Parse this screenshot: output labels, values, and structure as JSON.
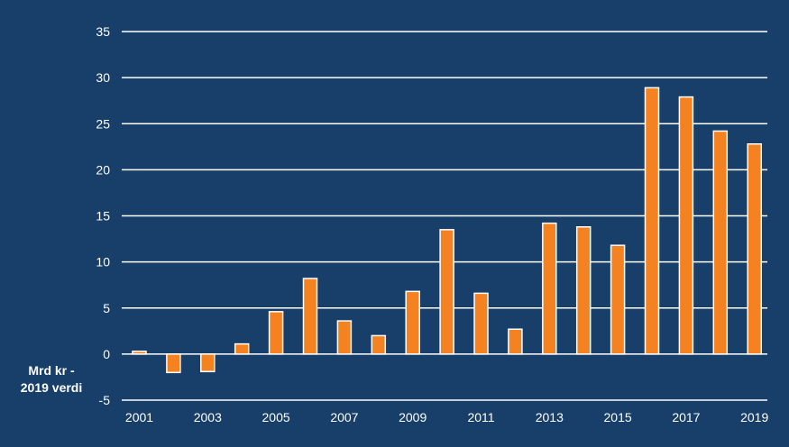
{
  "chart_data": {
    "type": "bar",
    "title": "",
    "xlabel": "",
    "ylabel": "Mrd kr -\n2019 verdi",
    "ylim": [
      -5,
      35
    ],
    "yticks": [
      35,
      30,
      25,
      20,
      15,
      10,
      5,
      0,
      -5
    ],
    "grid": true,
    "legend": "none",
    "categories": [
      "2001",
      "2002",
      "2003",
      "2004",
      "2005",
      "2006",
      "2007",
      "2008",
      "2009",
      "2010",
      "2011",
      "2012",
      "2013",
      "2014",
      "2015",
      "2016",
      "2017",
      "2018",
      "2019"
    ],
    "xtick_labels": [
      "2001",
      "2003",
      "2005",
      "2007",
      "2009",
      "2011",
      "2013",
      "2015",
      "2017",
      "2019"
    ],
    "values": [
      0.3,
      -2.0,
      -1.9,
      1.1,
      4.6,
      8.2,
      3.6,
      2.0,
      6.8,
      13.5,
      6.6,
      2.7,
      14.2,
      13.8,
      11.8,
      28.9,
      27.9,
      24.2,
      22.8
    ],
    "colors": {
      "background": "#173f6a",
      "bar": "#f58220",
      "bar_outline": "#ffffff",
      "grid": "#ffffff",
      "text": "#ffffff"
    }
  }
}
